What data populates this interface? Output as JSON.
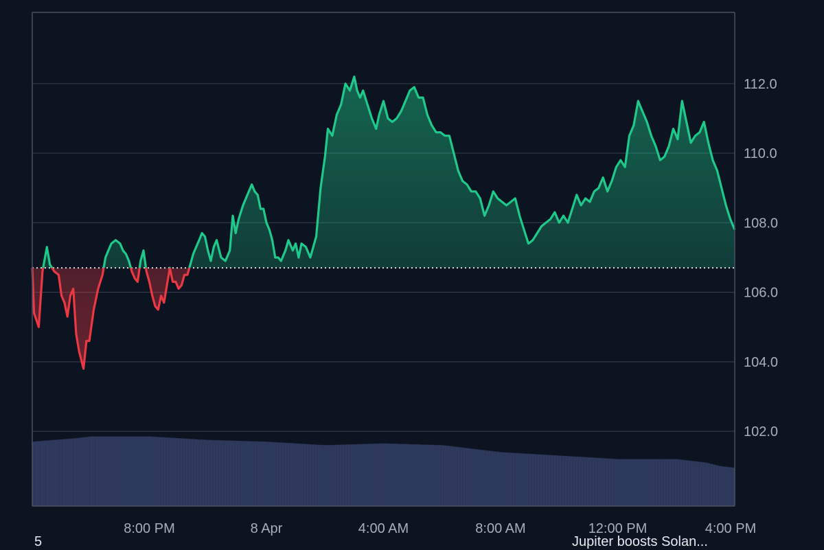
{
  "chart_data": {
    "type": "area",
    "title": "",
    "xlabel": "",
    "ylabel": "",
    "ylim": [
      99.85,
      114.05
    ],
    "baseline": 106.7,
    "colors": {
      "above": "#1ec98b",
      "below": "#ea3943",
      "volume": "#2e3a5c",
      "grid": "#323a4b",
      "axis": "#4a5263",
      "baseline": "#d9dde4"
    },
    "y_ticks": [
      102.0,
      104.0,
      106.0,
      108.0,
      110.0,
      112.0
    ],
    "y_tick_labels": [
      "102.0",
      "104.0",
      "106.0",
      "108.0",
      "110.0",
      "112.0"
    ],
    "x_tick_labels": [
      "8:00 PM",
      "8 Apr",
      "4:00 AM",
      "8:00 AM",
      "12:00 PM",
      "4:00 PM"
    ],
    "x_tick_hours": [
      4,
      8,
      12,
      16,
      20,
      24
    ],
    "x_range_hours": [
      0.0,
      24.0
    ],
    "series": [
      {
        "points": [
          [
            0.0,
            106.7
          ],
          [
            0.06,
            105.4
          ],
          [
            0.22,
            105.0
          ],
          [
            0.35,
            106.6
          ],
          [
            0.5,
            107.3
          ],
          [
            0.6,
            106.8
          ],
          [
            0.75,
            106.6
          ],
          [
            0.9,
            106.5
          ],
          [
            1.0,
            105.9
          ],
          [
            1.1,
            105.7
          ],
          [
            1.2,
            105.3
          ],
          [
            1.3,
            105.9
          ],
          [
            1.4,
            106.1
          ],
          [
            1.5,
            104.8
          ],
          [
            1.6,
            104.3
          ],
          [
            1.75,
            103.8
          ],
          [
            1.85,
            104.6
          ],
          [
            1.95,
            104.6
          ],
          [
            2.1,
            105.5
          ],
          [
            2.25,
            106.1
          ],
          [
            2.4,
            106.5
          ],
          [
            2.5,
            107.0
          ],
          [
            2.6,
            107.2
          ],
          [
            2.7,
            107.4
          ],
          [
            2.85,
            107.5
          ],
          [
            3.0,
            107.4
          ],
          [
            3.1,
            107.2
          ],
          [
            3.2,
            107.1
          ],
          [
            3.3,
            106.9
          ],
          [
            3.4,
            106.6
          ],
          [
            3.5,
            106.4
          ],
          [
            3.6,
            106.3
          ],
          [
            3.7,
            106.9
          ],
          [
            3.8,
            107.2
          ],
          [
            3.9,
            106.6
          ],
          [
            4.0,
            106.3
          ],
          [
            4.1,
            105.9
          ],
          [
            4.2,
            105.6
          ],
          [
            4.3,
            105.5
          ],
          [
            4.4,
            105.9
          ],
          [
            4.5,
            105.7
          ],
          [
            4.6,
            106.2
          ],
          [
            4.7,
            106.7
          ],
          [
            4.8,
            106.3
          ],
          [
            4.9,
            106.3
          ],
          [
            5.0,
            106.1
          ],
          [
            5.1,
            106.2
          ],
          [
            5.2,
            106.5
          ],
          [
            5.3,
            106.5
          ],
          [
            5.4,
            106.8
          ],
          [
            5.5,
            107.1
          ],
          [
            5.6,
            107.3
          ],
          [
            5.7,
            107.5
          ],
          [
            5.8,
            107.7
          ],
          [
            5.9,
            107.6
          ],
          [
            6.0,
            107.2
          ],
          [
            6.1,
            106.9
          ],
          [
            6.2,
            107.3
          ],
          [
            6.3,
            107.5
          ],
          [
            6.45,
            107.0
          ],
          [
            6.6,
            106.9
          ],
          [
            6.75,
            107.2
          ],
          [
            6.85,
            108.2
          ],
          [
            6.95,
            107.7
          ],
          [
            7.05,
            108.1
          ],
          [
            7.2,
            108.5
          ],
          [
            7.35,
            108.8
          ],
          [
            7.5,
            109.1
          ],
          [
            7.6,
            108.9
          ],
          [
            7.7,
            108.8
          ],
          [
            7.8,
            108.4
          ],
          [
            7.9,
            108.4
          ],
          [
            8.0,
            108.0
          ],
          [
            8.1,
            107.8
          ],
          [
            8.2,
            107.5
          ],
          [
            8.3,
            107.0
          ],
          [
            8.4,
            107.0
          ],
          [
            8.5,
            106.9
          ],
          [
            8.65,
            107.2
          ],
          [
            8.75,
            107.5
          ],
          [
            8.9,
            107.2
          ],
          [
            9.0,
            107.4
          ],
          [
            9.1,
            107.0
          ],
          [
            9.2,
            107.4
          ],
          [
            9.35,
            107.3
          ],
          [
            9.5,
            107.0
          ],
          [
            9.7,
            107.6
          ],
          [
            9.85,
            109.0
          ],
          [
            10.0,
            109.9
          ],
          [
            10.1,
            110.7
          ],
          [
            10.25,
            110.5
          ],
          [
            10.4,
            111.1
          ],
          [
            10.55,
            111.4
          ],
          [
            10.7,
            112.0
          ],
          [
            10.85,
            111.8
          ],
          [
            11.0,
            112.2
          ],
          [
            11.1,
            111.8
          ],
          [
            11.2,
            111.6
          ],
          [
            11.3,
            111.8
          ],
          [
            11.45,
            111.4
          ],
          [
            11.6,
            111.0
          ],
          [
            11.75,
            110.7
          ],
          [
            11.85,
            111.1
          ],
          [
            12.0,
            111.5
          ],
          [
            12.15,
            111.0
          ],
          [
            12.3,
            110.9
          ],
          [
            12.45,
            111.0
          ],
          [
            12.6,
            111.2
          ],
          [
            12.75,
            111.5
          ],
          [
            12.9,
            111.8
          ],
          [
            13.05,
            111.9
          ],
          [
            13.2,
            111.6
          ],
          [
            13.35,
            111.6
          ],
          [
            13.5,
            111.1
          ],
          [
            13.65,
            110.8
          ],
          [
            13.8,
            110.6
          ],
          [
            13.95,
            110.6
          ],
          [
            14.1,
            110.5
          ],
          [
            14.25,
            110.5
          ],
          [
            14.4,
            110.0
          ],
          [
            14.55,
            109.5
          ],
          [
            14.7,
            109.2
          ],
          [
            14.85,
            109.1
          ],
          [
            15.0,
            108.9
          ],
          [
            15.15,
            108.9
          ],
          [
            15.3,
            108.7
          ],
          [
            15.45,
            108.2
          ],
          [
            15.6,
            108.5
          ],
          [
            15.75,
            108.9
          ],
          [
            15.9,
            108.7
          ],
          [
            16.05,
            108.6
          ],
          [
            16.2,
            108.5
          ],
          [
            16.35,
            108.6
          ],
          [
            16.5,
            108.7
          ],
          [
            16.65,
            108.2
          ],
          [
            16.8,
            107.8
          ],
          [
            16.95,
            107.4
          ],
          [
            17.1,
            107.5
          ],
          [
            17.25,
            107.7
          ],
          [
            17.4,
            107.9
          ],
          [
            17.55,
            108.0
          ],
          [
            17.7,
            108.1
          ],
          [
            17.85,
            108.3
          ],
          [
            18.0,
            108.0
          ],
          [
            18.15,
            108.2
          ],
          [
            18.3,
            108.0
          ],
          [
            18.45,
            108.4
          ],
          [
            18.6,
            108.8
          ],
          [
            18.75,
            108.5
          ],
          [
            18.9,
            108.7
          ],
          [
            19.05,
            108.6
          ],
          [
            19.2,
            108.9
          ],
          [
            19.35,
            109.0
          ],
          [
            19.5,
            109.3
          ],
          [
            19.65,
            108.9
          ],
          [
            19.8,
            109.2
          ],
          [
            19.95,
            109.6
          ],
          [
            20.1,
            109.8
          ],
          [
            20.25,
            109.6
          ],
          [
            20.4,
            110.5
          ],
          [
            20.55,
            110.8
          ],
          [
            20.7,
            111.5
          ],
          [
            20.85,
            111.2
          ],
          [
            21.0,
            110.9
          ],
          [
            21.15,
            110.5
          ],
          [
            21.3,
            110.2
          ],
          [
            21.45,
            109.8
          ],
          [
            21.6,
            109.9
          ],
          [
            21.75,
            110.2
          ],
          [
            21.9,
            110.7
          ],
          [
            22.05,
            110.4
          ],
          [
            22.2,
            111.5
          ],
          [
            22.35,
            110.9
          ],
          [
            22.5,
            110.3
          ],
          [
            22.65,
            110.5
          ],
          [
            22.8,
            110.6
          ],
          [
            22.95,
            110.9
          ],
          [
            23.1,
            110.3
          ],
          [
            23.25,
            109.8
          ],
          [
            23.4,
            109.5
          ],
          [
            23.55,
            109.0
          ],
          [
            23.7,
            108.5
          ],
          [
            23.85,
            108.1
          ],
          [
            24.0,
            107.8
          ]
        ]
      },
      {
        "name": "",
        "values_start": 101.8,
        "volume_levels": [
          [
            0.0,
            101.7
          ],
          [
            1.5,
            101.8
          ],
          [
            2.0,
            101.85
          ],
          [
            4.0,
            101.85
          ],
          [
            6.0,
            101.75
          ],
          [
            8.0,
            101.7
          ],
          [
            10.0,
            101.6
          ],
          [
            12.0,
            101.65
          ],
          [
            14.0,
            101.6
          ],
          [
            16.0,
            101.4
          ],
          [
            18.0,
            101.3
          ],
          [
            20.0,
            101.2
          ],
          [
            22.0,
            101.2
          ],
          [
            23.0,
            101.1
          ],
          [
            23.5,
            101.0
          ],
          [
            24.0,
            100.95
          ]
        ]
      }
    ]
  },
  "footer": {
    "left_text": "5",
    "news_text": "Jupiter boosts Solan..."
  }
}
